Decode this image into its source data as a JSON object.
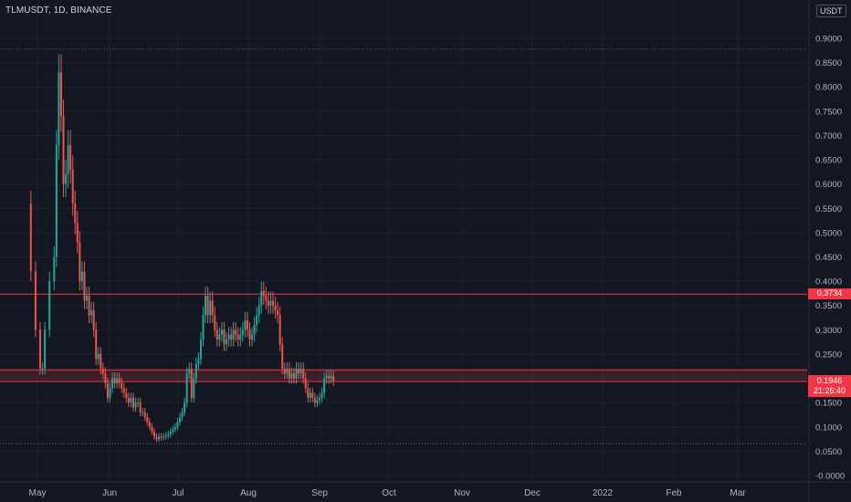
{
  "header": {
    "symbol_line": "TLMUSDT, 1D, BINANCE",
    "currency": "USDT"
  },
  "price_tags": {
    "resistance_value": "0.3734",
    "last_price": "0.1946",
    "countdown": "21:26:40"
  },
  "colors": {
    "background": "#131722",
    "up": "#26a69a",
    "down": "#ef5350",
    "level_line": "#f23645",
    "grid": "#1e222d",
    "text": "#b2b5be"
  },
  "chart_data": {
    "type": "candlestick",
    "title": "TLMUSDT, 1D, BINANCE",
    "x_ticks": [
      "May",
      "Jun",
      "Jul",
      "Aug",
      "Sep",
      "Oct",
      "Nov",
      "Dec",
      "2022",
      "Feb",
      "Mar"
    ],
    "y_ticks": [
      "0.9000",
      "0.8500",
      "0.8000",
      "0.7500",
      "0.7000",
      "0.6500",
      "0.6000",
      "0.5500",
      "0.5000",
      "0.4500",
      "0.4000",
      "0.3500",
      "0.3000",
      "0.2500",
      "0.2000",
      "0.1500",
      "0.1000",
      "0.0500",
      "-0.0000"
    ],
    "ylim": [
      -0.005,
      0.935
    ],
    "x_range_days": [
      -6,
      336
    ],
    "horizontal_levels": [
      {
        "value": 0.3734,
        "style": "solid"
      },
      {
        "value": 0.2175,
        "style": "solid"
      },
      {
        "value": 0.1935,
        "style": "solid"
      }
    ],
    "dotted_levels": [
      0.8776,
      0.0655
    ],
    "support_zone": [
      0.1935,
      0.2175
    ],
    "series": [
      {
        "close_points": [
          [
            -6,
            0.56
          ],
          [
            -4,
            0.42
          ],
          [
            -2,
            0.3
          ],
          [
            0,
            0.22
          ],
          [
            1,
            0.22
          ],
          [
            2,
            0.3
          ],
          [
            4,
            0.4
          ],
          [
            6,
            0.45
          ],
          [
            7,
            0.68
          ],
          [
            8,
            0.83
          ],
          [
            9,
            0.74
          ],
          [
            10,
            0.6
          ],
          [
            11,
            0.62
          ],
          [
            12,
            0.68
          ],
          [
            13,
            0.63
          ],
          [
            14,
            0.56
          ],
          [
            15,
            0.52
          ],
          [
            16,
            0.48
          ],
          [
            17,
            0.4
          ],
          [
            18,
            0.42
          ],
          [
            19,
            0.36
          ],
          [
            20,
            0.37
          ],
          [
            21,
            0.33
          ],
          [
            22,
            0.34
          ],
          [
            23,
            0.3
          ],
          [
            24,
            0.24
          ],
          [
            25,
            0.25
          ],
          [
            26,
            0.22
          ],
          [
            27,
            0.21
          ],
          [
            28,
            0.19
          ],
          [
            29,
            0.16
          ],
          [
            30,
            0.18
          ],
          [
            31,
            0.2
          ],
          [
            32,
            0.19
          ],
          [
            33,
            0.2
          ],
          [
            34,
            0.19
          ],
          [
            35,
            0.18
          ],
          [
            36,
            0.17
          ],
          [
            37,
            0.16
          ],
          [
            38,
            0.15
          ],
          [
            39,
            0.16
          ],
          [
            40,
            0.14
          ],
          [
            41,
            0.15
          ],
          [
            42,
            0.15
          ],
          [
            43,
            0.13
          ],
          [
            44,
            0.13
          ],
          [
            45,
            0.12
          ],
          [
            46,
            0.11
          ],
          [
            47,
            0.1
          ],
          [
            48,
            0.09
          ],
          [
            49,
            0.08
          ],
          [
            50,
            0.075
          ],
          [
            51,
            0.08
          ],
          [
            52,
            0.078
          ],
          [
            53,
            0.08
          ],
          [
            54,
            0.082
          ],
          [
            55,
            0.085
          ],
          [
            56,
            0.09
          ],
          [
            57,
            0.095
          ],
          [
            58,
            0.1
          ],
          [
            59,
            0.11
          ],
          [
            60,
            0.12
          ],
          [
            61,
            0.13
          ],
          [
            62,
            0.15
          ],
          [
            63,
            0.21
          ],
          [
            64,
            0.22
          ],
          [
            65,
            0.16
          ],
          [
            66,
            0.2
          ],
          [
            67,
            0.23
          ],
          [
            68,
            0.24
          ],
          [
            69,
            0.28
          ],
          [
            70,
            0.33
          ],
          [
            71,
            0.37
          ],
          [
            72,
            0.33
          ],
          [
            73,
            0.36
          ],
          [
            74,
            0.33
          ],
          [
            75,
            0.3
          ],
          [
            76,
            0.28
          ],
          [
            77,
            0.29
          ],
          [
            78,
            0.3
          ],
          [
            79,
            0.27
          ],
          [
            80,
            0.28
          ],
          [
            81,
            0.29
          ],
          [
            82,
            0.28
          ],
          [
            83,
            0.3
          ],
          [
            84,
            0.29
          ],
          [
            85,
            0.28
          ],
          [
            86,
            0.29
          ],
          [
            87,
            0.3
          ],
          [
            88,
            0.32
          ],
          [
            89,
            0.3
          ],
          [
            90,
            0.28
          ],
          [
            91,
            0.29
          ],
          [
            92,
            0.31
          ],
          [
            93,
            0.33
          ],
          [
            94,
            0.35
          ],
          [
            95,
            0.38
          ],
          [
            96,
            0.37
          ],
          [
            97,
            0.36
          ],
          [
            98,
            0.35
          ],
          [
            99,
            0.36
          ],
          [
            100,
            0.35
          ],
          [
            101,
            0.34
          ],
          [
            102,
            0.33
          ],
          [
            103,
            0.27
          ],
          [
            104,
            0.22
          ],
          [
            105,
            0.21
          ],
          [
            106,
            0.22
          ],
          [
            107,
            0.2
          ],
          [
            108,
            0.21
          ],
          [
            109,
            0.2
          ],
          [
            110,
            0.22
          ],
          [
            111,
            0.21
          ],
          [
            112,
            0.22
          ],
          [
            113,
            0.2
          ],
          [
            114,
            0.18
          ],
          [
            115,
            0.16
          ],
          [
            116,
            0.17
          ],
          [
            117,
            0.16
          ],
          [
            118,
            0.15
          ],
          [
            119,
            0.155
          ],
          [
            120,
            0.16
          ],
          [
            121,
            0.17
          ],
          [
            122,
            0.2
          ],
          [
            123,
            0.205
          ],
          [
            124,
            0.2
          ],
          [
            125,
            0.205
          ],
          [
            126,
            0.1946
          ]
        ]
      }
    ]
  }
}
